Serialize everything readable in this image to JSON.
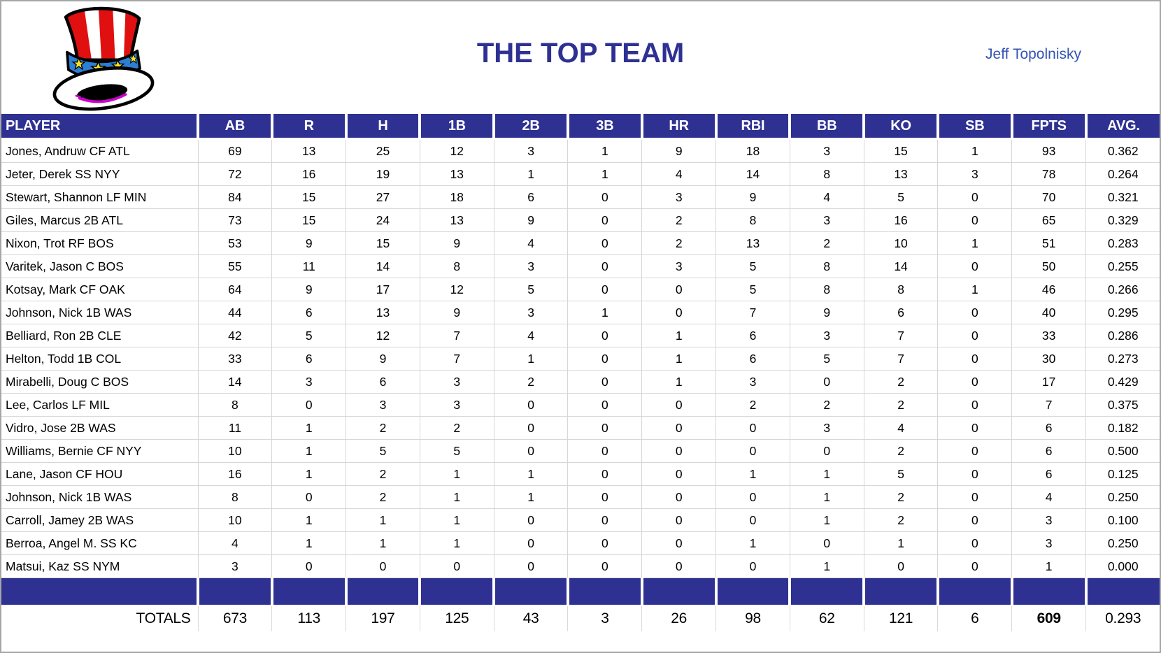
{
  "header": {
    "title": "THE TOP TEAM",
    "owner": "Jeff Topolnisky",
    "logo": "uncle-sam-hat-icon"
  },
  "table": {
    "columns": [
      "PLAYER",
      "AB",
      "R",
      "H",
      "1B",
      "2B",
      "3B",
      "HR",
      "RBI",
      "BB",
      "KO",
      "SB",
      "FPTS",
      "AVG."
    ],
    "rows": [
      [
        "Jones, Andruw CF ATL",
        "69",
        "13",
        "25",
        "12",
        "3",
        "1",
        "9",
        "18",
        "3",
        "15",
        "1",
        "93",
        "0.362"
      ],
      [
        "Jeter, Derek SS NYY",
        "72",
        "16",
        "19",
        "13",
        "1",
        "1",
        "4",
        "14",
        "8",
        "13",
        "3",
        "78",
        "0.264"
      ],
      [
        "Stewart, Shannon LF MIN",
        "84",
        "15",
        "27",
        "18",
        "6",
        "0",
        "3",
        "9",
        "4",
        "5",
        "0",
        "70",
        "0.321"
      ],
      [
        "Giles, Marcus 2B ATL",
        "73",
        "15",
        "24",
        "13",
        "9",
        "0",
        "2",
        "8",
        "3",
        "16",
        "0",
        "65",
        "0.329"
      ],
      [
        "Nixon, Trot RF BOS",
        "53",
        "9",
        "15",
        "9",
        "4",
        "0",
        "2",
        "13",
        "2",
        "10",
        "1",
        "51",
        "0.283"
      ],
      [
        "Varitek, Jason C BOS",
        "55",
        "11",
        "14",
        "8",
        "3",
        "0",
        "3",
        "5",
        "8",
        "14",
        "0",
        "50",
        "0.255"
      ],
      [
        "Kotsay, Mark CF OAK",
        "64",
        "9",
        "17",
        "12",
        "5",
        "0",
        "0",
        "5",
        "8",
        "8",
        "1",
        "46",
        "0.266"
      ],
      [
        "Johnson, Nick 1B WAS",
        "44",
        "6",
        "13",
        "9",
        "3",
        "1",
        "0",
        "7",
        "9",
        "6",
        "0",
        "40",
        "0.295"
      ],
      [
        "Belliard, Ron 2B CLE",
        "42",
        "5",
        "12",
        "7",
        "4",
        "0",
        "1",
        "6",
        "3",
        "7",
        "0",
        "33",
        "0.286"
      ],
      [
        "Helton, Todd 1B COL",
        "33",
        "6",
        "9",
        "7",
        "1",
        "0",
        "1",
        "6",
        "5",
        "7",
        "0",
        "30",
        "0.273"
      ],
      [
        "Mirabelli, Doug C BOS",
        "14",
        "3",
        "6",
        "3",
        "2",
        "0",
        "1",
        "3",
        "0",
        "2",
        "0",
        "17",
        "0.429"
      ],
      [
        "Lee, Carlos LF MIL",
        "8",
        "0",
        "3",
        "3",
        "0",
        "0",
        "0",
        "2",
        "2",
        "2",
        "0",
        "7",
        "0.375"
      ],
      [
        "Vidro, Jose 2B WAS",
        "11",
        "1",
        "2",
        "2",
        "0",
        "0",
        "0",
        "0",
        "3",
        "4",
        "0",
        "6",
        "0.182"
      ],
      [
        "Williams, Bernie CF NYY",
        "10",
        "1",
        "5",
        "5",
        "0",
        "0",
        "0",
        "0",
        "0",
        "2",
        "0",
        "6",
        "0.500"
      ],
      [
        "Lane, Jason CF HOU",
        "16",
        "1",
        "2",
        "1",
        "1",
        "0",
        "0",
        "1",
        "1",
        "5",
        "0",
        "6",
        "0.125"
      ],
      [
        "Johnson, Nick 1B WAS",
        "8",
        "0",
        "2",
        "1",
        "1",
        "0",
        "0",
        "0",
        "1",
        "2",
        "0",
        "4",
        "0.250"
      ],
      [
        "Carroll, Jamey 2B WAS",
        "10",
        "1",
        "1",
        "1",
        "0",
        "0",
        "0",
        "0",
        "1",
        "2",
        "0",
        "3",
        "0.100"
      ],
      [
        "Berroa, Angel M. SS KC",
        "4",
        "1",
        "1",
        "1",
        "0",
        "0",
        "0",
        "1",
        "0",
        "1",
        "0",
        "3",
        "0.250"
      ],
      [
        "Matsui, Kaz SS NYM",
        "3",
        "0",
        "0",
        "0",
        "0",
        "0",
        "0",
        "0",
        "1",
        "0",
        "0",
        "1",
        "0.000"
      ]
    ],
    "totals_label": "TOTALS",
    "totals": [
      "673",
      "113",
      "197",
      "125",
      "43",
      "3",
      "26",
      "98",
      "62",
      "121",
      "6",
      "609",
      "0.293"
    ],
    "bold_total_column": "FPTS"
  },
  "colors": {
    "header_bg": "#2e3192",
    "title_text": "#2e3192",
    "owner_text": "#3454b4",
    "grid_line": "#d6d6d6",
    "hat_red": "#e01010",
    "hat_band_blue": "#2d7fd4",
    "hat_star_yellow": "#f5e32c",
    "hat_opening_purple": "#cc00cc"
  }
}
